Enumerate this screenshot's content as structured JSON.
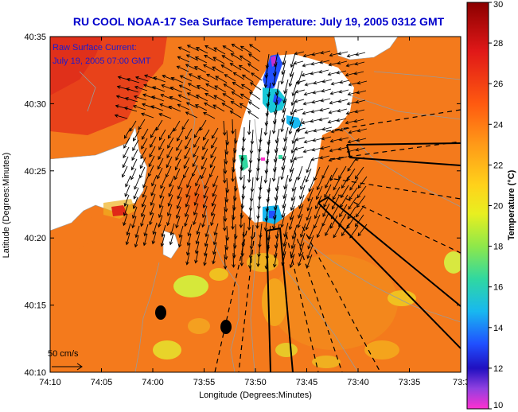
{
  "title": "RU COOL  NOAA-17  Sea Surface Temperature:  July 19, 2005 0312 GMT",
  "annotation_line1": "Raw Surface Current:",
  "annotation_line2": "July 19, 2005 07:00 GMT",
  "scale_label": "50 cm/s",
  "x_axis_label": "Longitude (Degrees:Minutes)",
  "y_axis_label": "Latitude (Degrees:Minutes)",
  "colorbar_label": "Temperature (°C)",
  "x_ticks": [
    "74:10",
    "74:05",
    "74:00",
    "73:55",
    "73:50",
    "73:45",
    "73:40",
    "73:35",
    "73:3"
  ],
  "y_ticks": [
    "40:35",
    "40:30",
    "40:25",
    "40:20",
    "40:15",
    "40:10"
  ],
  "colorbar_ticks": [
    "30",
    "28",
    "26",
    "24",
    "22",
    "20",
    "18",
    "16",
    "14",
    "12",
    "10"
  ],
  "colors": {
    "title": "#0000cc",
    "annotation": "#1a1ad0",
    "ocean_warm": "#f47a1c",
    "land": "#ffffff",
    "no_data": "#ffffff"
  },
  "chart_data": {
    "type": "heatmap",
    "title": "RU COOL  NOAA-17  Sea Surface Temperature:  July 19, 2005 0312 GMT",
    "xlabel": "Longitude (Degrees:Minutes)",
    "ylabel": "Latitude (Degrees:Minutes)",
    "colorbar": {
      "label": "Temperature (°C)",
      "range": [
        10,
        30
      ]
    },
    "xlim": [
      "74:10",
      "73:3"
    ],
    "ylim": [
      "40:10",
      "40:35"
    ],
    "overlay": "Raw Surface Current vectors, scale 50 cm/s"
  }
}
